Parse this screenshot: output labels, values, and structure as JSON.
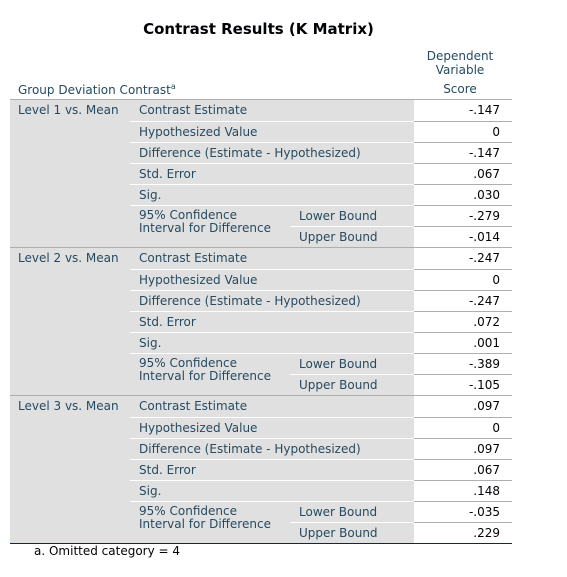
{
  "title": "Contrast Results (K Matrix)",
  "column_header": {
    "line1": "Dependent",
    "line2": "Variable",
    "score": "Score"
  },
  "row_dimension": {
    "label": "Group Deviation Contrast",
    "footnote_marker": "a"
  },
  "blocks": [
    {
      "level": "Level 1 vs. Mean",
      "stats": [
        {
          "label": "Contrast Estimate",
          "value": "-.147"
        },
        {
          "label": "Hypothesized Value",
          "value": "0"
        },
        {
          "label": "Difference (Estimate - Hypothesized)",
          "value": "-.147"
        },
        {
          "label": "Std. Error",
          "value": ".067"
        },
        {
          "label": "Sig.",
          "value": ".030"
        }
      ],
      "ci": {
        "line1": "95% Confidence",
        "line2": "Interval for Difference",
        "lower_label": "Lower Bound",
        "lower_value": "-.279",
        "upper_label": "Upper Bound",
        "upper_value": "-.014"
      }
    },
    {
      "level": "Level 2 vs. Mean",
      "stats": [
        {
          "label": "Contrast Estimate",
          "value": "-.247"
        },
        {
          "label": "Hypothesized Value",
          "value": "0"
        },
        {
          "label": "Difference (Estimate - Hypothesized)",
          "value": "-.247"
        },
        {
          "label": "Std. Error",
          "value": ".072"
        },
        {
          "label": "Sig.",
          "value": ".001"
        }
      ],
      "ci": {
        "line1": "95% Confidence",
        "line2": "Interval for Difference",
        "lower_label": "Lower Bound",
        "lower_value": "-.389",
        "upper_label": "Upper Bound",
        "upper_value": "-.105"
      }
    },
    {
      "level": "Level 3 vs. Mean",
      "stats": [
        {
          "label": "Contrast Estimate",
          "value": ".097"
        },
        {
          "label": "Hypothesized Value",
          "value": "0"
        },
        {
          "label": "Difference (Estimate - Hypothesized)",
          "value": ".097"
        },
        {
          "label": "Std. Error",
          "value": ".067"
        },
        {
          "label": "Sig.",
          "value": ".148"
        }
      ],
      "ci": {
        "line1": "95% Confidence",
        "line2": "Interval for Difference",
        "lower_label": "Lower Bound",
        "lower_value": "-.035",
        "upper_label": "Upper Bound",
        "upper_value": ".229"
      }
    }
  ],
  "footnote": "a. Omitted category = 4"
}
